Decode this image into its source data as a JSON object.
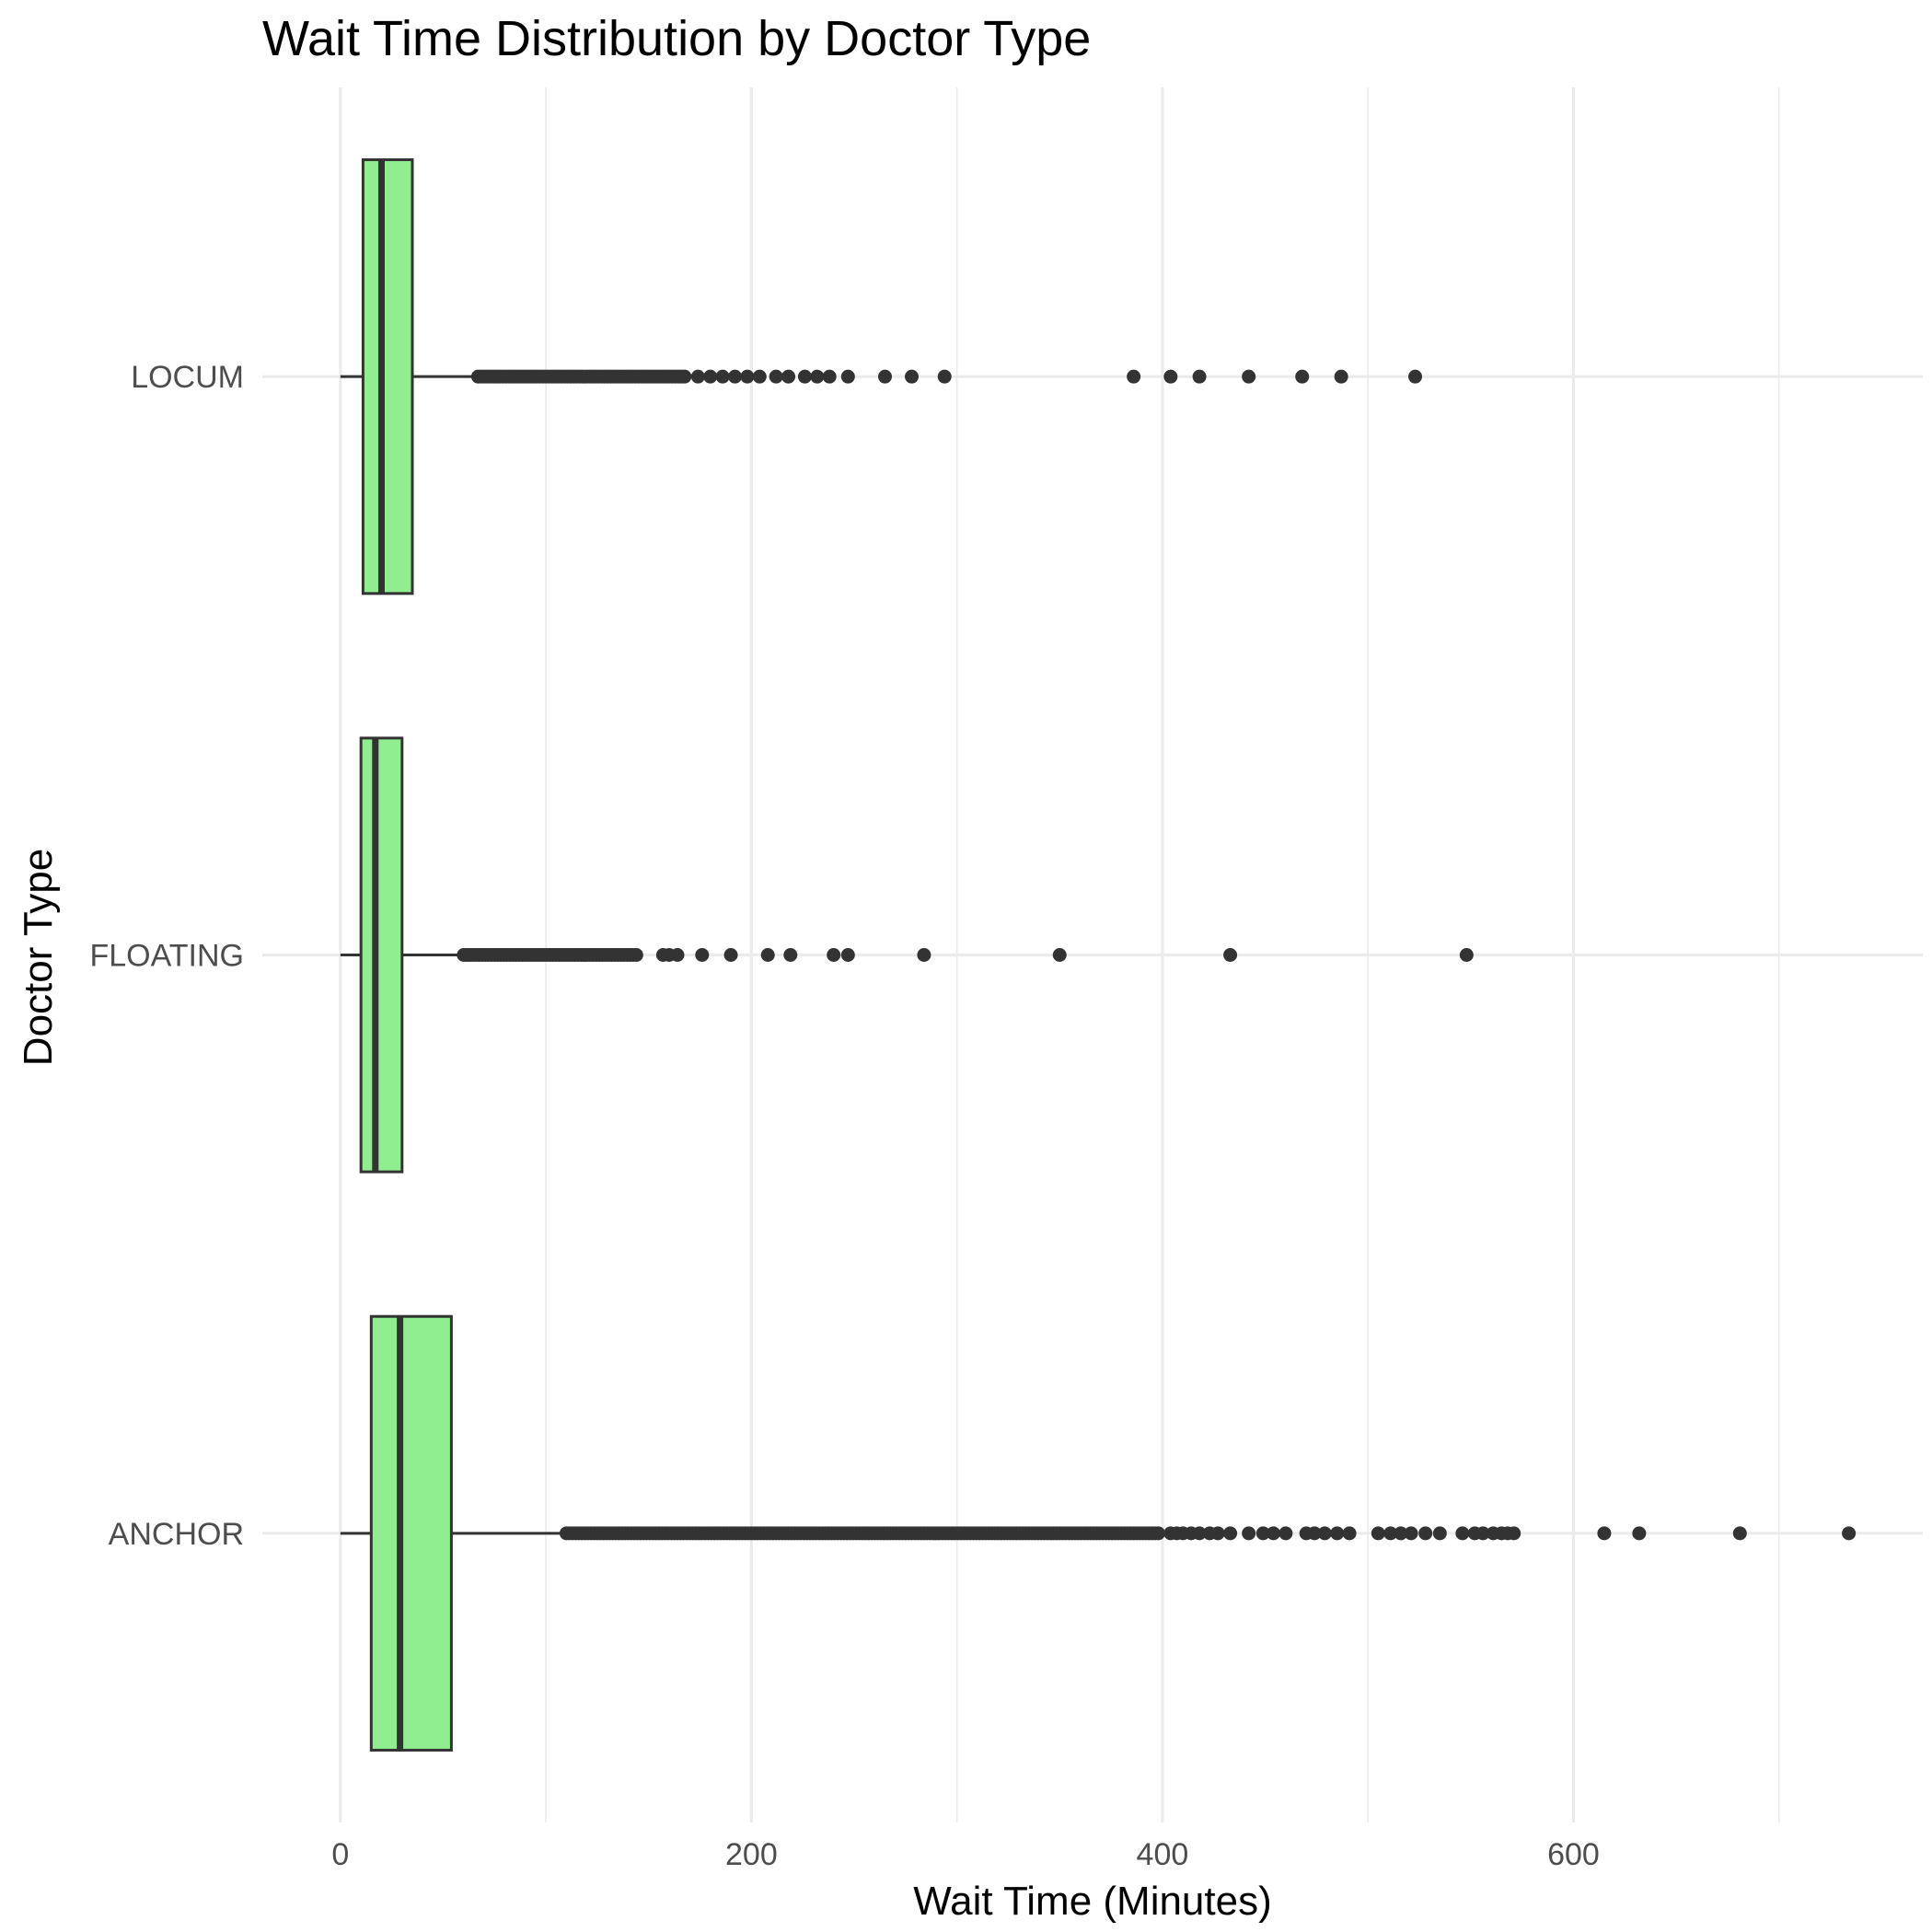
{
  "chart_data": {
    "type": "boxplot",
    "orientation": "horizontal",
    "title": "Wait Time Distribution by Doctor Type",
    "xlabel": "Wait Time (Minutes)",
    "ylabel": "Doctor Type",
    "xlim": [
      -38,
      770
    ],
    "x_ticks": [
      0,
      200,
      400,
      600
    ],
    "x_tick_labels": [
      "0",
      "200",
      "400",
      "600"
    ],
    "grid": true,
    "legend": "none",
    "box_fill": "#90ee90",
    "line_color": "#333333",
    "grid_color": "#ebebeb",
    "categories": [
      "ANCHOR",
      "FLOATING",
      "LOCUM"
    ],
    "series": [
      {
        "name": "ANCHOR",
        "whisker_low": 0,
        "q1": 15,
        "median": 29,
        "q3": 54,
        "whisker_high": 110,
        "outlier_ranges": [
          [
            110,
            398
          ]
        ],
        "outliers": [
          404,
          407,
          410,
          414,
          418,
          423,
          427,
          433,
          442,
          449,
          454,
          460,
          470,
          474,
          479,
          485,
          491,
          505,
          511,
          516,
          521,
          528,
          535,
          546,
          552,
          556,
          561,
          565,
          568,
          571,
          615,
          632,
          681,
          734
        ]
      },
      {
        "name": "FLOATING",
        "whisker_low": 0,
        "q1": 10,
        "median": 17,
        "q3": 30,
        "whisker_high": 60,
        "outlier_ranges": [
          [
            60,
            145
          ]
        ],
        "outliers": [
          157,
          160,
          164,
          176,
          190,
          208,
          219,
          240,
          247,
          284,
          350,
          433,
          548
        ]
      },
      {
        "name": "LOCUM",
        "whisker_low": 0,
        "q1": 11,
        "median": 20,
        "q3": 35,
        "whisker_high": 67,
        "outlier_ranges": [
          [
            67,
            168
          ]
        ],
        "outliers": [
          174,
          180,
          186,
          192,
          198,
          204,
          212,
          218,
          226,
          232,
          238,
          247,
          265,
          278,
          294,
          386,
          404,
          418,
          442,
          468,
          487,
          523
        ]
      }
    ]
  }
}
